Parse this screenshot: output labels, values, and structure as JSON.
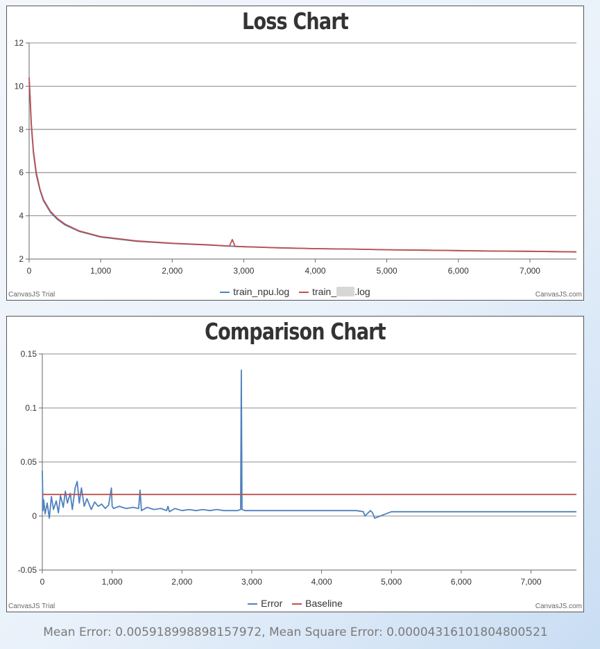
{
  "chart_data": [
    {
      "type": "line",
      "title": "Loss Chart",
      "xlim": [
        0,
        7650
      ],
      "ylim": [
        2,
        12
      ],
      "x_ticks": [
        0,
        1000,
        2000,
        3000,
        4000,
        5000,
        6000,
        7000
      ],
      "x_tick_labels": [
        "0",
        "1,000",
        "2,000",
        "3,000",
        "4,000",
        "5,000",
        "6,000",
        "7,000"
      ],
      "y_ticks": [
        2,
        4,
        6,
        8,
        10,
        12
      ],
      "y_tick_labels": [
        "2",
        "4",
        "6",
        "8",
        "10",
        "12"
      ],
      "grid": "horizontal",
      "legend": "bottom",
      "series": [
        {
          "name": "train_npu.log",
          "color": "#4f81bc",
          "x": [
            0,
            10,
            30,
            60,
            100,
            150,
            200,
            300,
            400,
            500,
            700,
            1000,
            1500,
            2000,
            2500,
            2800,
            3000,
            3500,
            4000,
            4500,
            5000,
            5500,
            6000,
            6500,
            7000,
            7650
          ],
          "y": [
            10.2,
            9.7,
            8.2,
            6.9,
            5.9,
            5.2,
            4.7,
            4.15,
            3.82,
            3.58,
            3.28,
            3.02,
            2.82,
            2.72,
            2.65,
            2.6,
            2.57,
            2.52,
            2.48,
            2.46,
            2.43,
            2.41,
            2.39,
            2.37,
            2.36,
            2.33
          ]
        },
        {
          "name_prefix": "train_",
          "name_suffix": ".log",
          "color": "#c0504e",
          "x": [
            0,
            10,
            30,
            60,
            100,
            150,
            200,
            300,
            400,
            500,
            700,
            1000,
            1500,
            2000,
            2500,
            2800,
            2840,
            2880,
            3000,
            3500,
            4000,
            4500,
            5000,
            5500,
            6000,
            6500,
            7000,
            7650
          ],
          "y": [
            10.4,
            9.8,
            8.3,
            7.0,
            6.0,
            5.25,
            4.75,
            4.2,
            3.86,
            3.62,
            3.3,
            3.04,
            2.84,
            2.73,
            2.66,
            2.6,
            2.9,
            2.58,
            2.57,
            2.52,
            2.48,
            2.46,
            2.43,
            2.41,
            2.39,
            2.37,
            2.36,
            2.33
          ]
        }
      ]
    },
    {
      "type": "line",
      "title": "Comparison Chart",
      "xlim": [
        0,
        7650
      ],
      "ylim": [
        -0.05,
        0.15
      ],
      "x_ticks": [
        0,
        1000,
        2000,
        3000,
        4000,
        5000,
        6000,
        7000
      ],
      "x_tick_labels": [
        "0",
        "1,000",
        "2,000",
        "3,000",
        "4,000",
        "5,000",
        "6,000",
        "7,000"
      ],
      "y_ticks": [
        -0.05,
        0,
        0.05,
        0.1,
        0.15
      ],
      "y_tick_labels": [
        "-0.05",
        "0",
        "0.05",
        "0.1",
        "0.15"
      ],
      "grid": "horizontal",
      "legend": "bottom",
      "series": [
        {
          "name": "Error",
          "color": "#4f81bc",
          "x": [
            0,
            10,
            20,
            40,
            70,
            100,
            130,
            160,
            200,
            230,
            260,
            300,
            330,
            360,
            400,
            430,
            470,
            500,
            530,
            560,
            600,
            640,
            700,
            750,
            800,
            850,
            900,
            950,
            990,
            1000,
            1020,
            1100,
            1200,
            1300,
            1380,
            1400,
            1420,
            1500,
            1600,
            1700,
            1780,
            1800,
            1820,
            1900,
            2000,
            2100,
            2200,
            2300,
            2400,
            2500,
            2600,
            2700,
            2800,
            2840,
            2850,
            2860,
            2900,
            3000,
            3200,
            3500,
            4000,
            4500,
            4600,
            4620,
            4700,
            4730,
            4760,
            5000,
            5500,
            6000,
            6500,
            7000,
            7500,
            7650
          ],
          "y": [
            0.042,
            0.005,
            0.015,
            0.002,
            0.012,
            -0.002,
            0.018,
            0.006,
            0.014,
            0.003,
            0.019,
            0.008,
            0.023,
            0.012,
            0.021,
            0.006,
            0.026,
            0.032,
            0.012,
            0.026,
            0.009,
            0.016,
            0.006,
            0.013,
            0.009,
            0.011,
            0.007,
            0.01,
            0.026,
            0.009,
            0.007,
            0.009,
            0.007,
            0.008,
            0.007,
            0.024,
            0.005,
            0.008,
            0.006,
            0.007,
            0.005,
            0.009,
            0.004,
            0.007,
            0.005,
            0.006,
            0.005,
            0.006,
            0.005,
            0.006,
            0.005,
            0.005,
            0.005,
            0.006,
            0.135,
            0.006,
            0.005,
            0.005,
            0.005,
            0.005,
            0.005,
            0.005,
            0.004,
            0.0,
            0.005,
            0.003,
            -0.002,
            0.004,
            0.004,
            0.004,
            0.004,
            0.004,
            0.004,
            0.004
          ]
        },
        {
          "name": "Baseline",
          "color": "#c0504e",
          "x": [
            0,
            7650
          ],
          "y": [
            0.02,
            0.02
          ]
        }
      ]
    }
  ],
  "branding": {
    "trial": "CanvasJS Trial",
    "credit": "CanvasJS.com"
  },
  "footer": {
    "stats": "Mean Error: 0.005918998898157972, Mean Square Error: 0.000043161018048005​21"
  }
}
